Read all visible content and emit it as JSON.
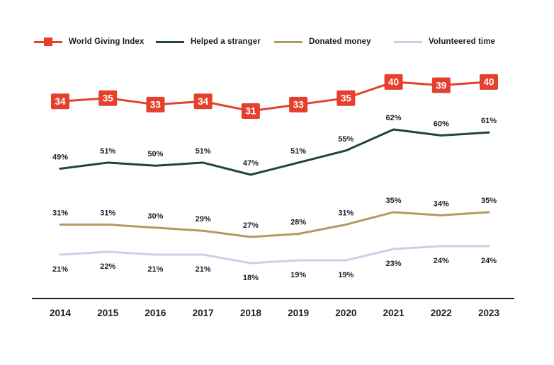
{
  "chart_data": {
    "type": "line",
    "title": "",
    "xlabel": "",
    "ylabel": "",
    "grid": false,
    "legend_position": "top",
    "x": [
      "2014",
      "2015",
      "2016",
      "2017",
      "2018",
      "2019",
      "2020",
      "2021",
      "2022",
      "2023"
    ],
    "series": [
      {
        "name": "World Giving Index",
        "color": "#e5402e",
        "values": [
          34,
          35,
          33,
          34,
          31,
          33,
          35,
          40,
          39,
          40
        ],
        "label_suffix": "",
        "label_style": "box",
        "marker": "square"
      },
      {
        "name": "Helped a stranger",
        "color": "#1f443e",
        "values": [
          49,
          51,
          50,
          51,
          47,
          51,
          55,
          62,
          60,
          61
        ],
        "label_suffix": "%",
        "label_style": "above",
        "marker": "none"
      },
      {
        "name": "Donated money",
        "color": "#b29a62",
        "values": [
          31,
          31,
          30,
          29,
          27,
          28,
          31,
          35,
          34,
          35
        ],
        "label_suffix": "%",
        "label_style": "above",
        "marker": "none"
      },
      {
        "name": "Volunteered time",
        "color": "#d9c9e4",
        "values": [
          21,
          22,
          21,
          21,
          18,
          19,
          19,
          23,
          24,
          24
        ],
        "label_suffix": "%",
        "label_style": "below",
        "marker": "none"
      }
    ],
    "text_color": "#1d1d2b",
    "axis_color": "#1d1d2b"
  }
}
